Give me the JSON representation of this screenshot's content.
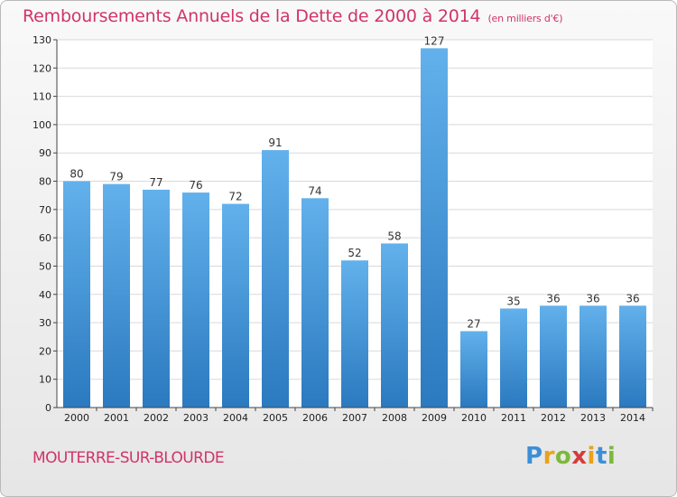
{
  "chart_data": {
    "type": "bar",
    "title": "Remboursements Annuels de la Dette de 2000 à 2014",
    "unit_note": "(en milliers d'€)",
    "categories": [
      "2000",
      "2001",
      "2002",
      "2003",
      "2004",
      "2005",
      "2006",
      "2007",
      "2008",
      "2009",
      "2010",
      "2011",
      "2012",
      "2013",
      "2014"
    ],
    "values": [
      80,
      79,
      77,
      76,
      72,
      91,
      74,
      52,
      58,
      127,
      27,
      35,
      36,
      36,
      36
    ],
    "ylim": [
      0,
      130
    ],
    "yticks": [
      0,
      10,
      20,
      30,
      40,
      50,
      60,
      70,
      80,
      90,
      100,
      110,
      120,
      130
    ],
    "grid": true,
    "bar_color": "#3f93d6",
    "grid_color": "#d9d9d9"
  },
  "footer": {
    "commune": "MOUTERRE-SUR-BLOURDE"
  },
  "brand": {
    "letters": [
      "P",
      "r",
      "o",
      "x",
      "i",
      "t",
      "i"
    ],
    "colors": [
      "#3c8fd6",
      "#e8a21c",
      "#7cb93b",
      "#d63b3b",
      "#e8a21c",
      "#3c8fd6",
      "#7cb93b"
    ]
  },
  "colors": {
    "title": "#d0346a"
  }
}
